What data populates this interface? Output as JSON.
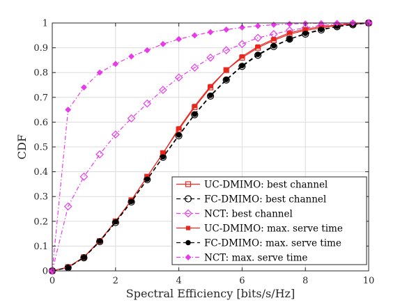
{
  "chart_data": {
    "type": "line",
    "title": "",
    "xlabel": "Spectral Efficiency [bits/s/Hz]",
    "ylabel": "CDF",
    "xlim": [
      0,
      10
    ],
    "ylim": [
      0,
      1
    ],
    "xticks": [
      0,
      2,
      4,
      6,
      8,
      10
    ],
    "yticks": [
      0,
      0.1,
      0.2,
      0.3,
      0.4,
      0.5,
      0.6,
      0.7,
      0.8,
      0.9,
      1
    ],
    "xtick_labels": [
      "0",
      "2",
      "4",
      "6",
      "8",
      "10"
    ],
    "ytick_labels": [
      "0",
      "0.1",
      "0.2",
      "0.3",
      "0.4",
      "0.5",
      "0.6",
      "0.7",
      "0.8",
      "0.9",
      "1"
    ],
    "grid": true,
    "legend_position": "bottom-right",
    "x": [
      0,
      0.5,
      1,
      1.5,
      2,
      2.5,
      3,
      3.5,
      4,
      4.5,
      5,
      5.5,
      6,
      6.5,
      7,
      7.5,
      8,
      8.5,
      9,
      9.5,
      10
    ],
    "series": [
      {
        "name": "UC-DMIMO: best channel",
        "color": "#e8271f",
        "dash": "solid",
        "marker": "square-open",
        "values": [
          0,
          0.015,
          0.055,
          0.12,
          0.2,
          0.285,
          0.38,
          0.475,
          0.57,
          0.66,
          0.74,
          0.81,
          0.86,
          0.9,
          0.93,
          0.955,
          0.97,
          0.98,
          0.99,
          0.995,
          1.0
        ]
      },
      {
        "name": "FC-DMIMO: best channel",
        "color": "#000000",
        "dash": "dashed",
        "marker": "circle-open",
        "values": [
          0,
          0.013,
          0.053,
          0.118,
          0.195,
          0.278,
          0.368,
          0.458,
          0.545,
          0.63,
          0.705,
          0.77,
          0.825,
          0.87,
          0.905,
          0.935,
          0.955,
          0.972,
          0.985,
          0.993,
          1.0
        ]
      },
      {
        "name": "NCT: best channel",
        "color": "#e83be8",
        "dash": "dashdot",
        "marker": "diamond-open",
        "values": [
          0,
          0.26,
          0.38,
          0.47,
          0.55,
          0.615,
          0.675,
          0.73,
          0.78,
          0.82,
          0.86,
          0.89,
          0.915,
          0.94,
          0.955,
          0.97,
          0.98,
          0.99,
          0.995,
          0.998,
          1.0
        ]
      },
      {
        "name": "UC-DMIMO: max. serve time",
        "color": "#e8271f",
        "dash": "solid",
        "marker": "square-filled",
        "values": [
          0,
          0.015,
          0.056,
          0.122,
          0.2,
          0.285,
          0.38,
          0.475,
          0.575,
          0.665,
          0.745,
          0.81,
          0.865,
          0.905,
          0.935,
          0.96,
          0.975,
          0.985,
          0.992,
          0.997,
          1.0
        ]
      },
      {
        "name": "FC-DMIMO: max. serve time",
        "color": "#000000",
        "dash": "dashed",
        "marker": "circle-filled",
        "values": [
          0,
          0.013,
          0.054,
          0.12,
          0.198,
          0.28,
          0.37,
          0.46,
          0.548,
          0.632,
          0.708,
          0.772,
          0.828,
          0.873,
          0.908,
          0.935,
          0.958,
          0.974,
          0.986,
          0.994,
          1.0
        ]
      },
      {
        "name": "NCT: max. serve time",
        "color": "#e83be8",
        "dash": "dashdot",
        "marker": "diamond-filled",
        "values": [
          0,
          0.65,
          0.74,
          0.8,
          0.835,
          0.865,
          0.89,
          0.915,
          0.935,
          0.95,
          0.963,
          0.973,
          0.982,
          0.988,
          0.993,
          0.996,
          0.998,
          0.999,
          1.0,
          1.0,
          1.0
        ]
      }
    ]
  }
}
